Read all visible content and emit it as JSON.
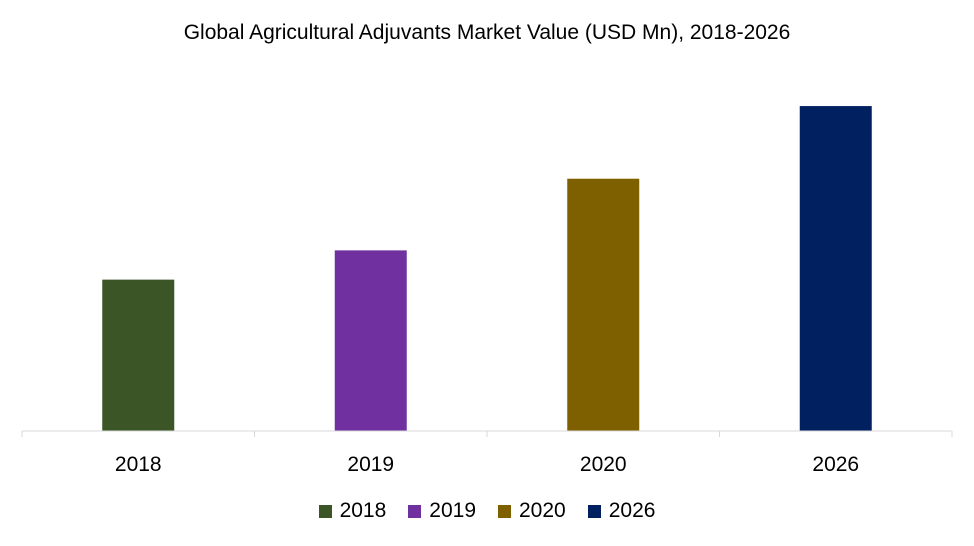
{
  "chart_data": {
    "type": "bar",
    "title": "Global Agricultural Adjuvants Market Value (USD Mn), 2018-2026",
    "xlabel": "",
    "ylabel": "",
    "categories": [
      "2018",
      "2019",
      "2020",
      "2026"
    ],
    "values": [
      150,
      179,
      250,
      322
    ],
    "colors": [
      "#3b5527",
      "#7030a0",
      "#7f6000",
      "#002060"
    ],
    "ylim": [
      0,
      330
    ],
    "grid": false,
    "value_axis_shown": false,
    "legend_position": "bottom"
  }
}
